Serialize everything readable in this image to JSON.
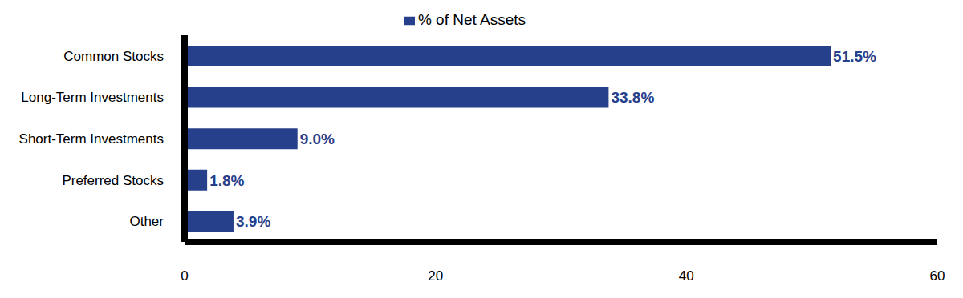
{
  "chart_data": {
    "type": "bar",
    "orientation": "horizontal",
    "categories": [
      "Common Stocks",
      "Long-Term Investments",
      "Short-Term Investments",
      "Preferred Stocks",
      "Other"
    ],
    "series": [
      {
        "name": "% of Net Assets",
        "color": "#27408b",
        "values": [
          51.5,
          33.8,
          9.0,
          1.8,
          3.9
        ],
        "value_labels": [
          "51.5%",
          "33.8%",
          "9.0%",
          "1.8%",
          "3.9%"
        ]
      }
    ],
    "xlim": [
      0,
      60
    ],
    "xticks": [
      0,
      20,
      40,
      60
    ],
    "grid": false,
    "legend": "top",
    "data_labels": true
  }
}
